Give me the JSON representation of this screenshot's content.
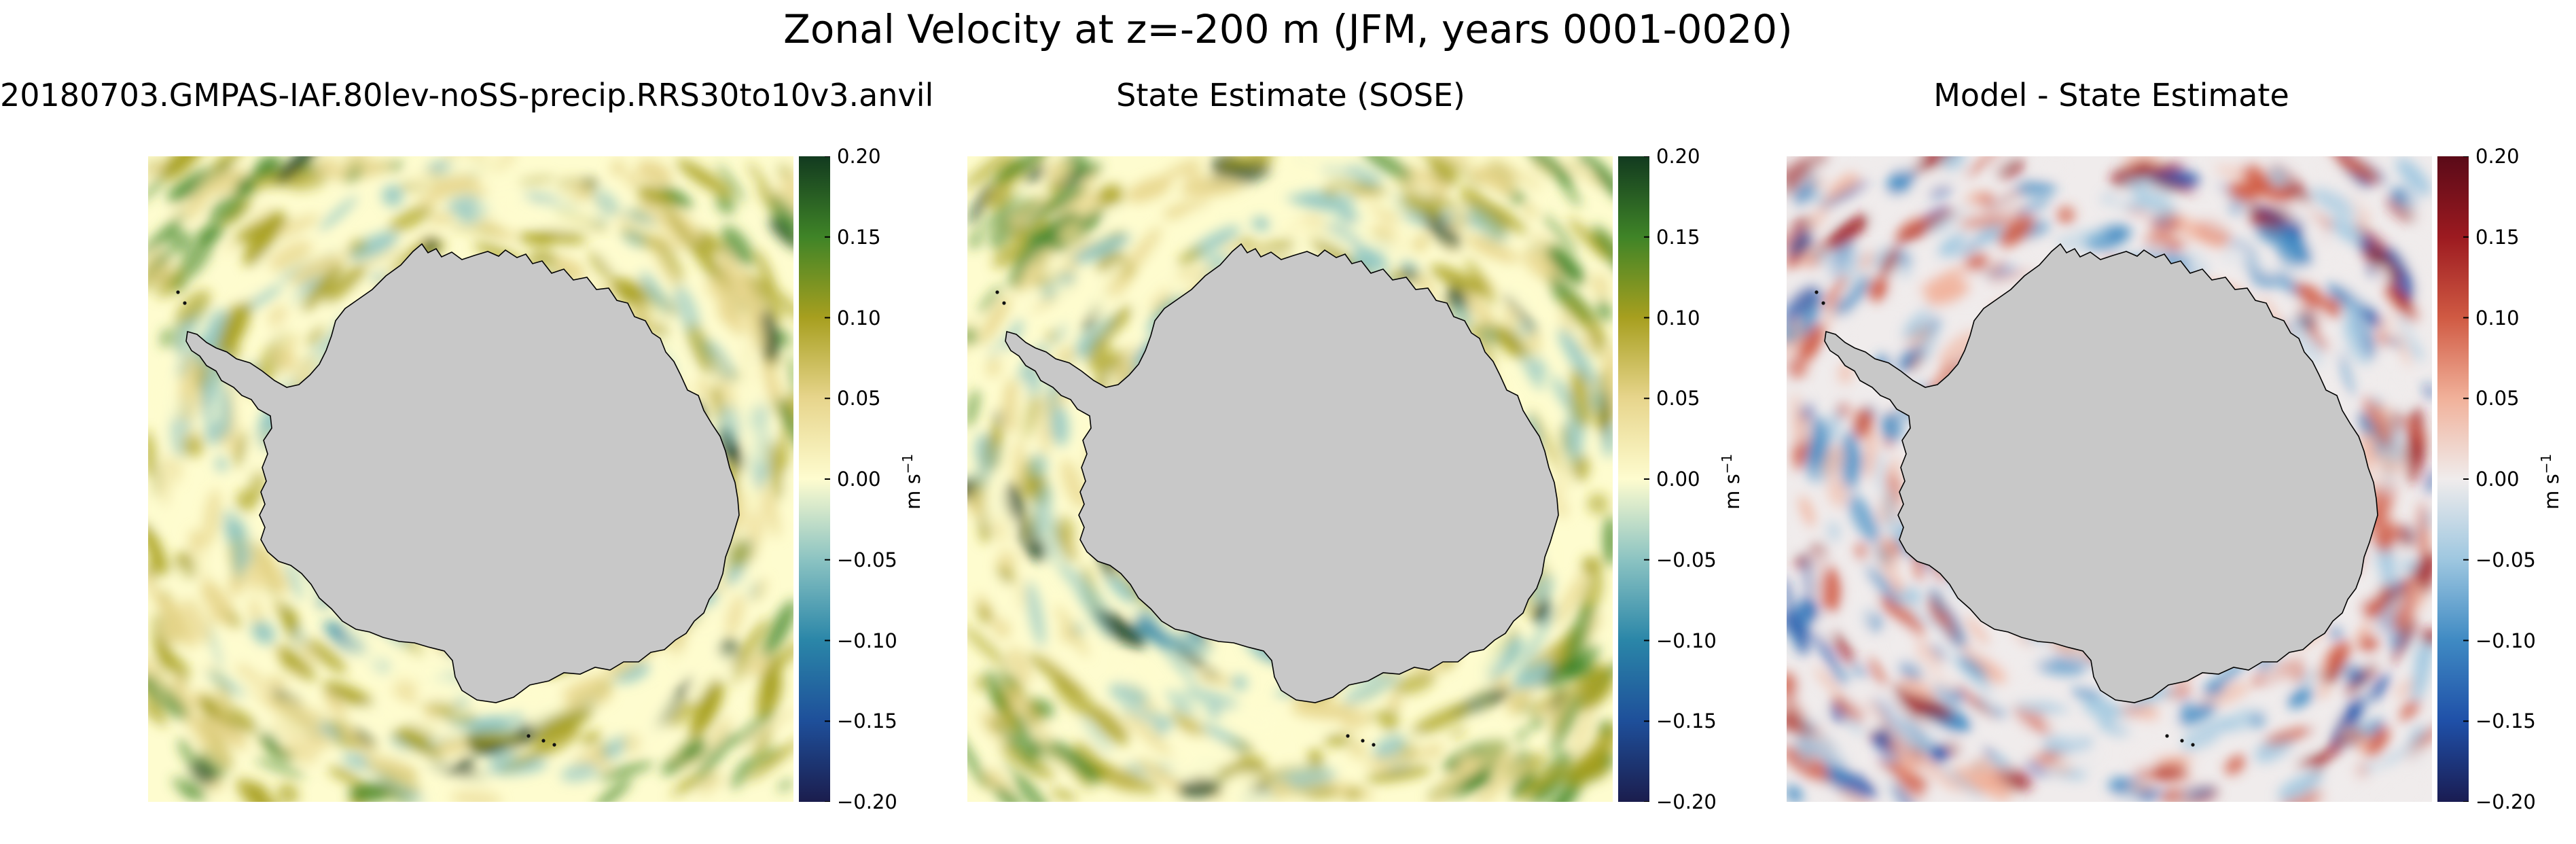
{
  "suptitle": "Zonal Velocity at z=-200 m (JFM, years 0001-0020)",
  "panels": [
    {
      "title": "20180703.GMPAS-IAF.80lev-noSS-precip.RRS30to10v3.anvil",
      "colormap": "cmocean-delta-right-half"
    },
    {
      "title": "State Estimate (SOSE)",
      "colormap": "cmocean-delta-right-half"
    },
    {
      "title": "Model - State Estimate",
      "colormap": "RdBu_r"
    }
  ],
  "colorbar": {
    "unit": "m s",
    "unit_exponent": "−1",
    "ticks": [
      "0.20",
      "0.15",
      "0.10",
      "0.05",
      "0.00",
      "−0.05",
      "−0.10",
      "−0.15",
      "−0.20"
    ],
    "vmin": -0.2,
    "vmax": 0.2
  },
  "colors": {
    "land": "#c8c8c8",
    "coastline": "#000000",
    "velocity_scale": [
      "#1b1d4d",
      "#1e4f9a",
      "#2a86a8",
      "#8bc3c2",
      "#fefccf",
      "#e7d58c",
      "#a79f1f",
      "#3f8427",
      "#123a1f"
    ],
    "difference_scale": [
      "#1a1c52",
      "#1f50a8",
      "#3f8ac3",
      "#9ec7e0",
      "#f0ecec",
      "#f1b19a",
      "#d05a43",
      "#9c1a20",
      "#5a0a18"
    ]
  }
}
